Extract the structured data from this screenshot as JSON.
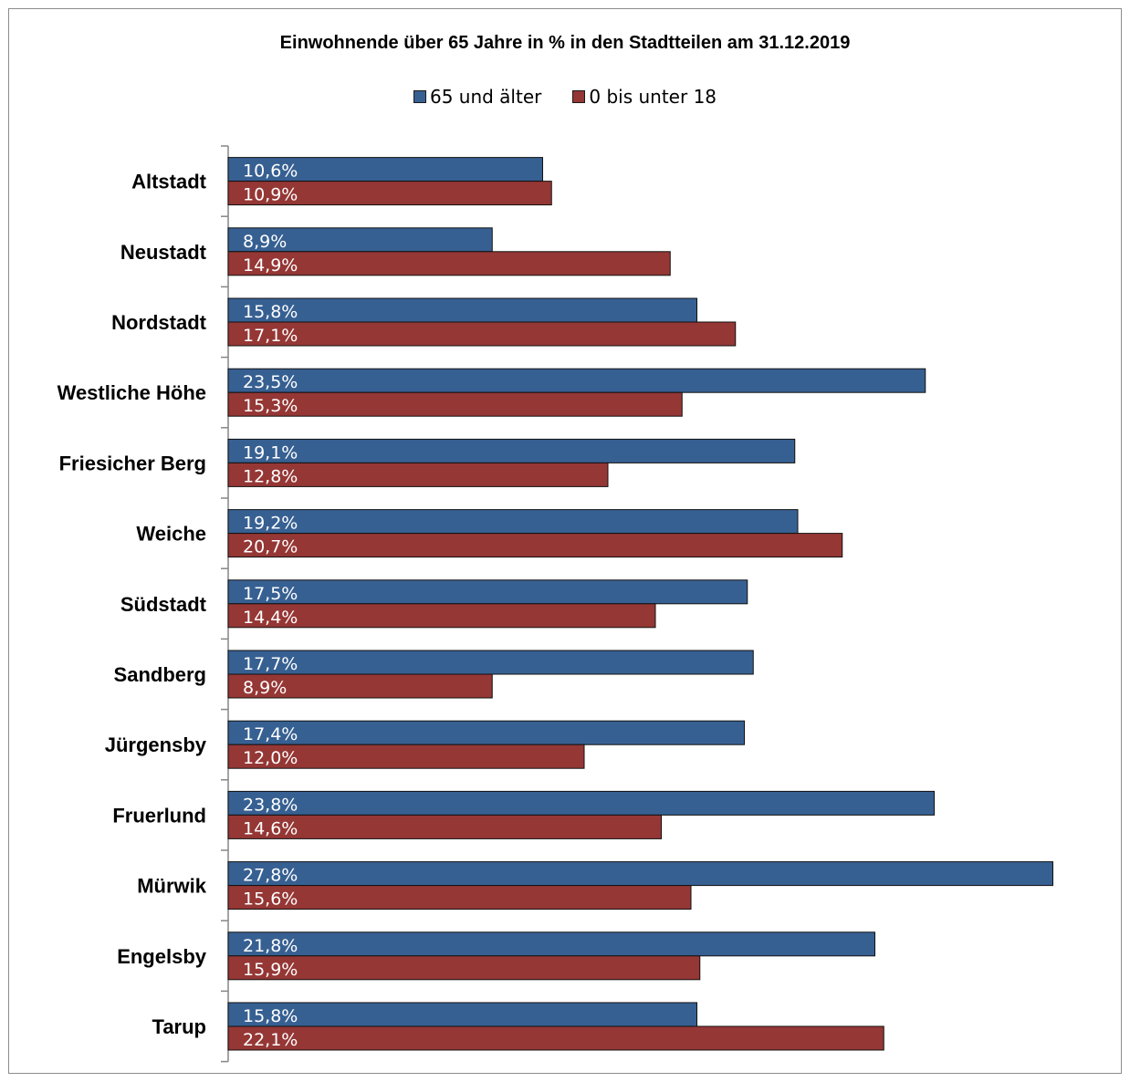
{
  "chart_data": {
    "type": "bar",
    "orientation": "horizontal",
    "title": "Einwohnende über 65 Jahre in % in den Stadtteilen am 31.12.2019",
    "legend_position": "top",
    "grid": false,
    "xlim": [
      0,
      28
    ],
    "categories": [
      "Altstadt",
      "Neustadt",
      "Nordstadt",
      "Westliche Höhe",
      "Friesicher Berg",
      "Weiche",
      "Südstadt",
      "Sandberg",
      "Jürgensby",
      "Fruerlund",
      "Mürwik",
      "Engelsby",
      "Tarup"
    ],
    "series": [
      {
        "name": "65 und älter",
        "color": "#376092",
        "values": [
          10.6,
          8.9,
          15.8,
          23.5,
          19.1,
          19.2,
          17.5,
          17.7,
          17.4,
          23.8,
          27.8,
          21.8,
          15.8
        ],
        "labels": [
          "10,6%",
          "8,9%",
          "15,8%",
          "23,5%",
          "19,1%",
          "19,2%",
          "17,5%",
          "17,7%",
          "17,4%",
          "23,8%",
          "27,8%",
          "21,8%",
          "15,8%"
        ]
      },
      {
        "name": "0 bis unter 18",
        "color": "#953735",
        "values": [
          10.9,
          14.9,
          17.1,
          15.3,
          12.8,
          20.7,
          14.4,
          8.9,
          12.0,
          14.6,
          15.6,
          15.9,
          22.1
        ],
        "labels": [
          "10,9%",
          "14,9%",
          "17,1%",
          "15,3%",
          "12,8%",
          "20,7%",
          "14,4%",
          "8,9%",
          "12,0%",
          "14,6%",
          "15,6%",
          "15,9%",
          "22,1%"
        ]
      }
    ]
  }
}
